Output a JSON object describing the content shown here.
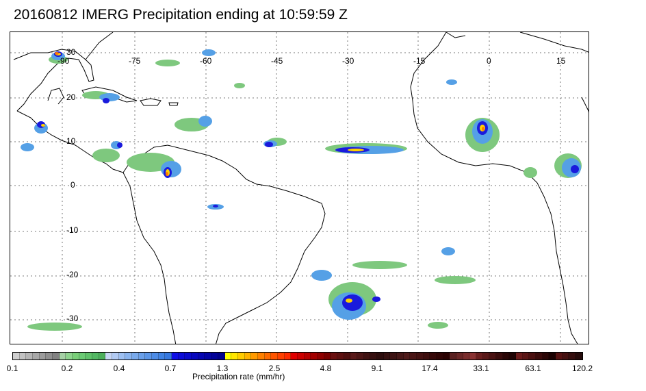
{
  "title": "20160812 IMERG Precipitation ending at 10:59:59 Z",
  "map": {
    "lon_labels": [
      "-90",
      "-75",
      "-60",
      "-45",
      "-30",
      "-15",
      "0",
      "15"
    ],
    "lat_labels": [
      "30",
      "20",
      "10",
      "0",
      "-10",
      "-20",
      "-30"
    ],
    "colors": {
      "land_outline": "#000000",
      "gridline": "#777777",
      "light_rain": "#7ec87e",
      "moderate_rain": "#55a0e6",
      "heavy_rain": "#1a1adc",
      "very_heavy": "#ffd200",
      "extreme": "#ff7a00"
    }
  },
  "colorbar": {
    "title": "Precipitation rate (mm/hr)",
    "ticks": [
      "0.1",
      "0.2",
      "0.4",
      "0.7",
      "1.3",
      "2.5",
      "4.8",
      "9.1",
      "17.4",
      "33.1",
      "63.1",
      "120.2"
    ],
    "colors": [
      "#cfcfcf",
      "#c2c2c2",
      "#b5b5b5",
      "#a8a8a8",
      "#9c9c9c",
      "#8f8f8f",
      "#828282",
      "#a5d1a5",
      "#8ed48e",
      "#78cf78",
      "#6acb74",
      "#5ec26a",
      "#52b863",
      "#4caf5c",
      "#c6d6f5",
      "#b2cbf4",
      "#9dc0f2",
      "#89b4ef",
      "#79aaec",
      "#6aa0ea",
      "#5b96e8",
      "#4d8ce6",
      "#3f82e4",
      "#3578e0",
      "#0f0fe6",
      "#0c0cd8",
      "#0a0acc",
      "#0808bf",
      "#0606b2",
      "#0404a6",
      "#020299",
      "#00008d",
      "#ffff00",
      "#ffe600",
      "#ffcc00",
      "#ffb300",
      "#ff9a00",
      "#ff8000",
      "#ff6a00",
      "#ff5500",
      "#ff4000",
      "#ff2b00",
      "#e00000",
      "#cc0000",
      "#b80000",
      "#a30000",
      "#8f0000",
      "#7a0000",
      "#6b1010",
      "#5d1010",
      "#4f0f0f",
      "#5a1a1a",
      "#4d1616",
      "#401212",
      "#360f0f",
      "#2c0c0c",
      "#351010",
      "#3d1313",
      "#461717",
      "#4f1a1a",
      "#4a1515",
      "#441111",
      "#3d0d0d",
      "#370909",
      "#300505",
      "#2a0202",
      "#5a2020",
      "#6a2626",
      "#7a2c2c",
      "#8a3232",
      "#6a1e1e",
      "#5a1818",
      "#4a1212",
      "#3a0c0c",
      "#2a0606",
      "#1f0303",
      "#6b1a1a",
      "#5b1515",
      "#4b1010",
      "#3b0b0b",
      "#2b0606",
      "#1b0101",
      "#551111",
      "#451010",
      "#350e0e",
      "#250b0b"
    ]
  }
}
